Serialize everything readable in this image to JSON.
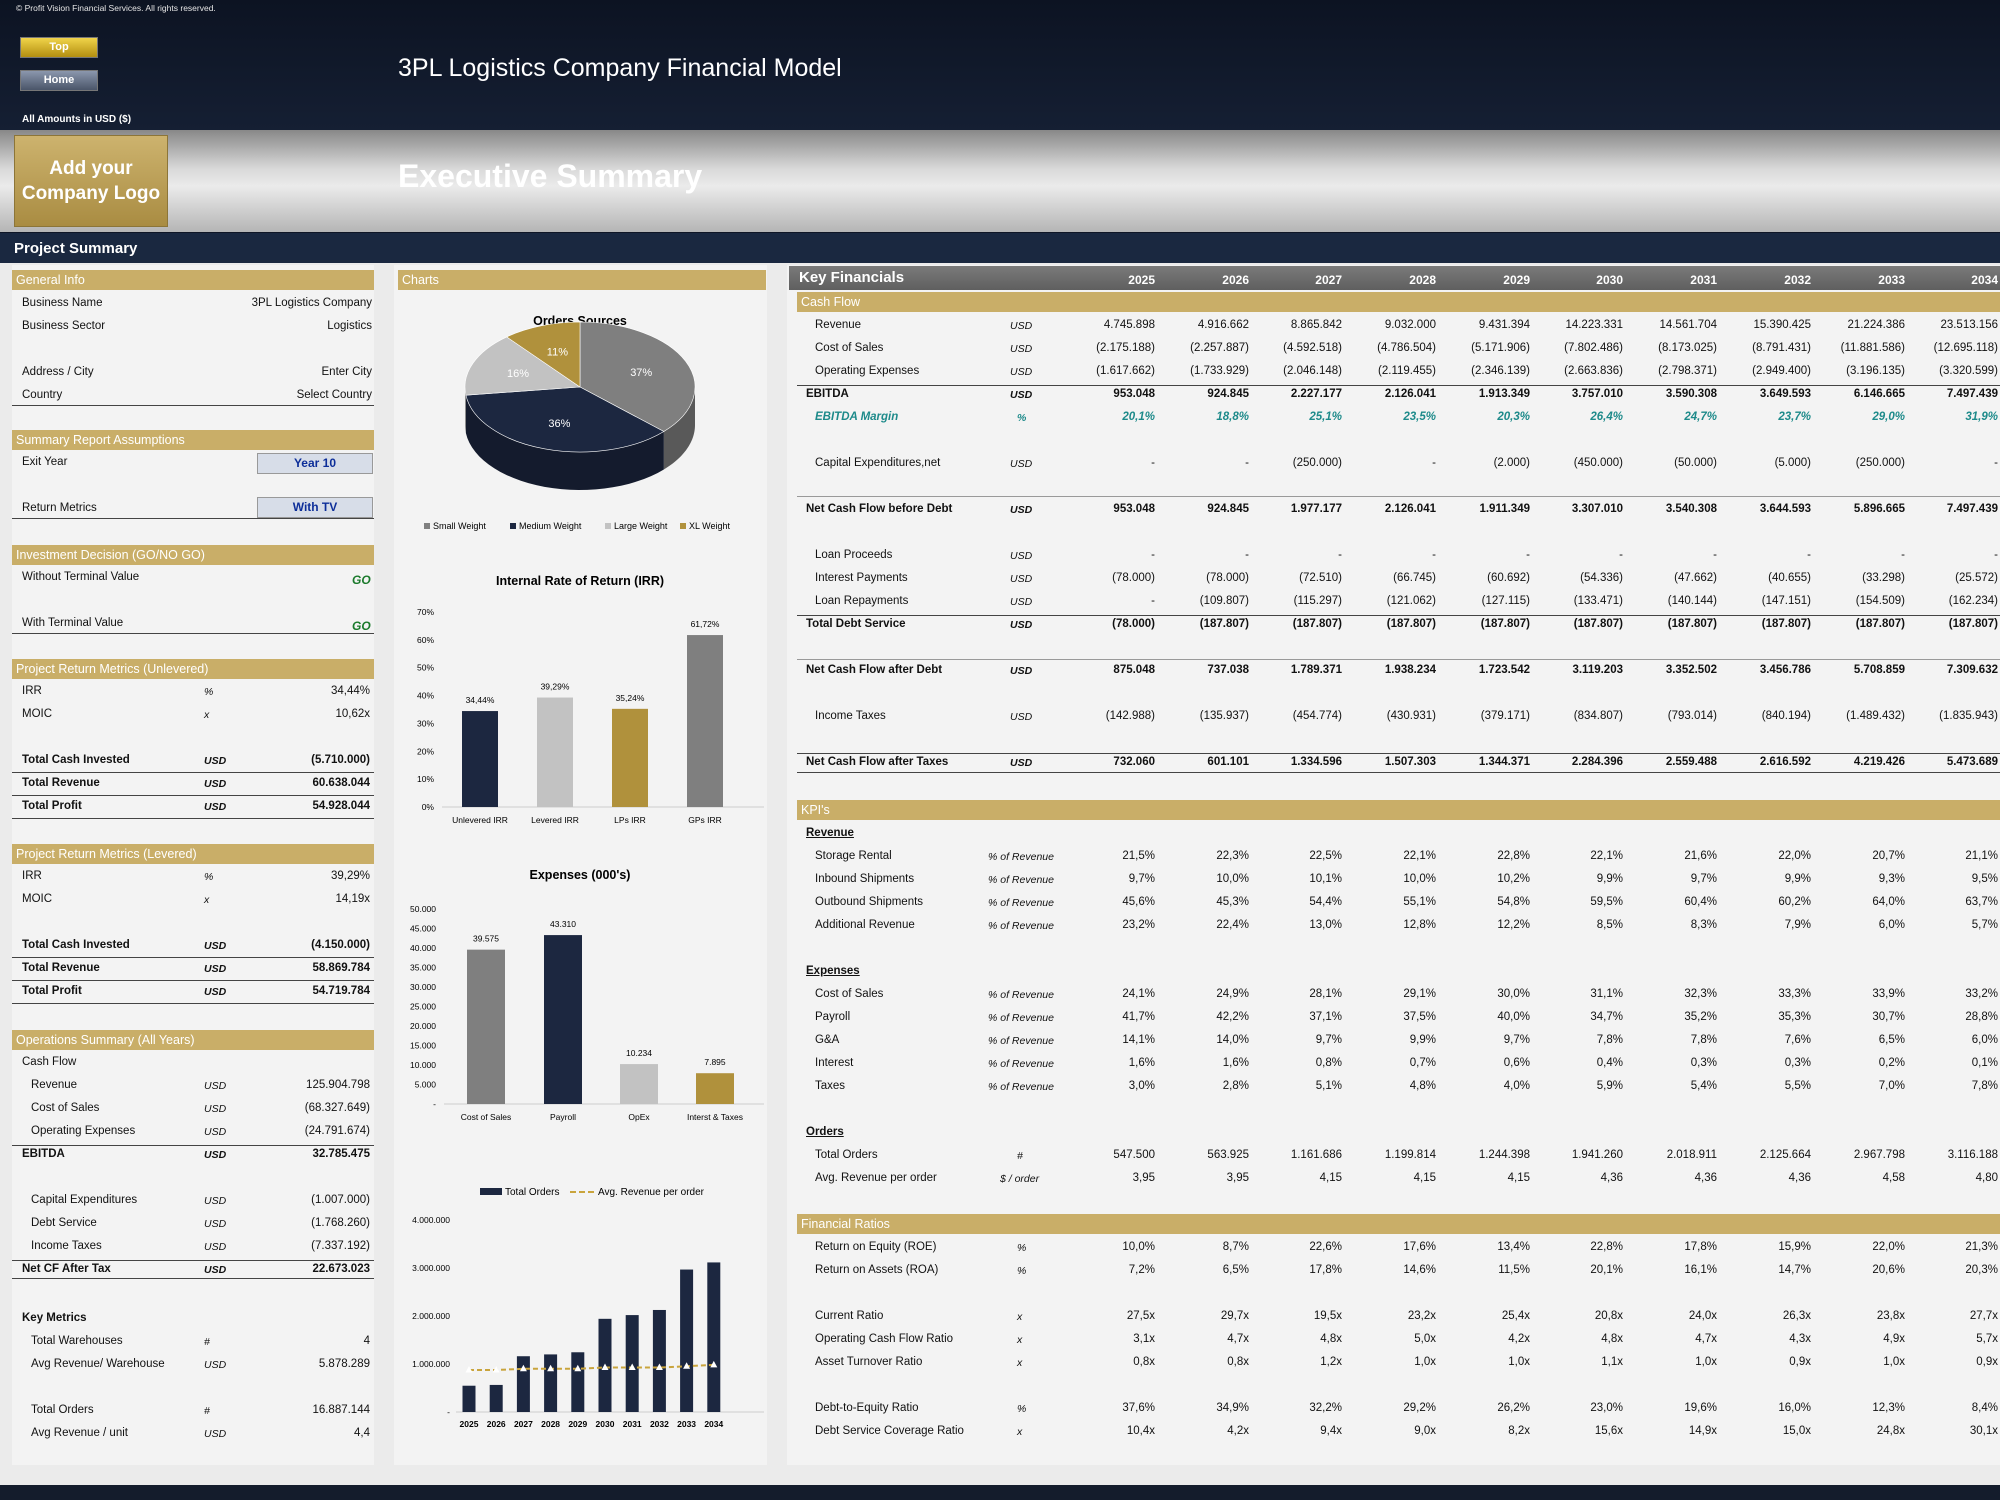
{
  "copyright": "© Profit Vision Financial Services. All rights reserved.",
  "nav": {
    "top": "Top",
    "home": "Home"
  },
  "model_title": "3PL Logistics Company Financial Model",
  "amounts_label": "All Amounts in  USD ($)",
  "logo_text": "Add your Company Logo",
  "page_title": "Executive Summary",
  "project_summary": "Project Summary",
  "general_info": {
    "header": "General Info",
    "rows": [
      {
        "label": "Business Name",
        "value": "3PL Logistics Company"
      },
      {
        "label": "Business Sector",
        "value": "Logistics"
      },
      {
        "label": "Address / City",
        "value": "Enter City"
      },
      {
        "label": "Country",
        "value": "Select Country"
      }
    ]
  },
  "assumptions": {
    "header": "Summary  Report Assumptions",
    "exit_year_label": "Exit Year",
    "exit_year_value": "Year 10",
    "return_label": "Return Metrics",
    "return_value": "With TV"
  },
  "decision": {
    "header": "Investment Decision (GO/NO GO)",
    "without_label": "Without Terminal Value",
    "without_value": "GO",
    "with_label": "With Terminal Value",
    "with_value": "GO"
  },
  "unlevered": {
    "header": "Project Return Metrics (Unlevered)",
    "irr": {
      "label": "IRR",
      "unit": "%",
      "value": "34,44%"
    },
    "moic": {
      "label": "MOIC",
      "unit": "x",
      "value": "10,62x"
    },
    "rows": [
      {
        "label": "Total Cash Invested",
        "unit": "USD",
        "value": "(5.710.000)"
      },
      {
        "label": "Total Revenue",
        "unit": "USD",
        "value": "60.638.044"
      },
      {
        "label": "Total Profit",
        "unit": "USD",
        "value": "54.928.044"
      }
    ]
  },
  "levered": {
    "header": "Project Return Metrics (Levered)",
    "irr": {
      "label": "IRR",
      "unit": "%",
      "value": "39,29%"
    },
    "moic": {
      "label": "MOIC",
      "unit": "x",
      "value": "14,19x"
    },
    "rows": [
      {
        "label": "Total Cash Invested",
        "unit": "USD",
        "value": "(4.150.000)"
      },
      {
        "label": "Total Revenue",
        "unit": "USD",
        "value": "58.869.784"
      },
      {
        "label": "Total Profit",
        "unit": "USD",
        "value": "54.719.784"
      }
    ]
  },
  "operations": {
    "header": "Operations Summary (All Years)",
    "cash_flow_label": "Cash Flow",
    "rows": [
      {
        "label": "Revenue",
        "unit": "USD",
        "value": "125.904.798"
      },
      {
        "label": "Cost of Sales",
        "unit": "USD",
        "value": "(68.327.649)"
      },
      {
        "label": "Operating Expenses",
        "unit": "USD",
        "value": "(24.791.674)"
      }
    ],
    "ebitda": {
      "label": "EBITDA",
      "unit": "USD",
      "value": "32.785.475"
    },
    "rows2": [
      {
        "label": "Capital Expenditures",
        "unit": "USD",
        "value": "(1.007.000)"
      },
      {
        "label": "Debt Service",
        "unit": "USD",
        "value": "(1.768.260)"
      },
      {
        "label": "Income Taxes",
        "unit": "USD",
        "value": "(7.337.192)"
      }
    ],
    "net": {
      "label": "Net CF After Tax",
      "unit": "USD",
      "value": "22.673.023"
    },
    "key_metrics_label": "Key Metrics",
    "km": [
      {
        "label": "Total Warehouses",
        "unit": "#",
        "value": "4"
      },
      {
        "label": "Avg Revenue/ Warehouse",
        "unit": "USD",
        "value": "5.878.289"
      },
      {
        "label": "Total Orders",
        "unit": "#",
        "value": "16.887.144"
      },
      {
        "label": "Avg Revenue / unit",
        "unit": "USD",
        "value": "4,4"
      }
    ]
  },
  "charts_header": "Charts",
  "chart_data": [
    {
      "type": "pie",
      "title": "Orders Sources",
      "categories": [
        "Small Weight",
        "Medium Weight",
        "Large Weight",
        "XL Weight"
      ],
      "values": [
        37,
        36,
        16,
        11
      ],
      "labels": [
        "37%",
        "36%",
        "16%",
        "11%"
      ],
      "colors": [
        "#7f7f7f",
        "#1c2740",
        "#c2c2c2",
        "#b0913c"
      ],
      "legend": "bottom"
    },
    {
      "type": "bar",
      "title": "Internal Rate of Return (IRR)",
      "categories": [
        "Unlevered IRR",
        "Levered IRR",
        "LPs IRR",
        "GPs IRR"
      ],
      "values": [
        34.44,
        39.29,
        35.24,
        61.72
      ],
      "labels": [
        "34,44%",
        "39,29%",
        "35,24%",
        "61,72%"
      ],
      "colors": [
        "#1c2740",
        "#c2c2c2",
        "#b0913c",
        "#7f7f7f"
      ],
      "ylim": [
        0,
        70
      ],
      "yticks": [
        "0%",
        "10%",
        "20%",
        "30%",
        "40%",
        "50%",
        "60%",
        "70%"
      ]
    },
    {
      "type": "bar",
      "title": "Expenses (000's)",
      "categories": [
        "Cost of Sales",
        "Payroll",
        "OpEx",
        "Interst & Taxes"
      ],
      "values": [
        39575,
        43310,
        10234,
        7895
      ],
      "labels": [
        "39.575",
        "43.310",
        "10.234",
        "7.895"
      ],
      "colors": [
        "#7f7f7f",
        "#1c2740",
        "#c2c2c2",
        "#b0913c"
      ],
      "ylim": [
        0,
        50000
      ],
      "yticks": [
        "-",
        "5.000",
        "10.000",
        "15.000",
        "20.000",
        "25.000",
        "30.000",
        "35.000",
        "40.000",
        "45.000",
        "50.000"
      ]
    },
    {
      "type": "bar",
      "title": "",
      "categories": [
        "2025",
        "2026",
        "2027",
        "2028",
        "2029",
        "2030",
        "2031",
        "2032",
        "2033",
        "2034"
      ],
      "series": [
        {
          "name": "Total Orders",
          "values": [
            547500,
            563925,
            1161686,
            1199814,
            1244398,
            1941260,
            2018911,
            2125664,
            2967798,
            3116188
          ]
        },
        {
          "name": "Avg. Revenue per order",
          "values": [
            3.95,
            3.95,
            4.15,
            4.15,
            4.15,
            4.36,
            4.36,
            4.36,
            4.58,
            4.8
          ]
        }
      ],
      "ylim": [
        0,
        4000000
      ],
      "yticks": [
        "-",
        "1.000.000",
        "2.000.000",
        "3.000.000",
        "4.000.000"
      ],
      "legend": "top"
    }
  ],
  "key_financials": {
    "title": "Key Financials",
    "years": [
      "2025",
      "2026",
      "2027",
      "2028",
      "2029",
      "2030",
      "2031",
      "2032",
      "2033",
      "2034"
    ]
  },
  "cash_flow_header": "Cash Flow",
  "cf_rows": [
    {
      "label": "Revenue",
      "unit": "USD",
      "v": [
        "4.745.898",
        "4.916.662",
        "8.865.842",
        "9.032.000",
        "9.431.394",
        "14.223.331",
        "14.561.704",
        "15.390.425",
        "21.224.386",
        "23.513.156"
      ]
    },
    {
      "label": "Cost of Sales",
      "unit": "USD",
      "v": [
        "(2.175.188)",
        "(2.257.887)",
        "(4.592.518)",
        "(4.786.504)",
        "(5.171.906)",
        "(7.802.486)",
        "(8.173.025)",
        "(8.791.431)",
        "(11.881.586)",
        "(12.695.118)"
      ]
    },
    {
      "label": "Operating Expenses",
      "unit": "USD",
      "v": [
        "(1.617.662)",
        "(1.733.929)",
        "(2.046.148)",
        "(2.119.455)",
        "(2.346.139)",
        "(2.663.836)",
        "(2.798.371)",
        "(2.949.400)",
        "(3.196.135)",
        "(3.320.599)"
      ]
    },
    {
      "label": "EBITDA",
      "unit": "USD",
      "v": [
        "953.048",
        "924.845",
        "2.227.177",
        "2.126.041",
        "1.913.349",
        "3.757.010",
        "3.590.308",
        "3.649.593",
        "6.146.665",
        "7.497.439"
      ]
    },
    {
      "label": "EBITDA Margin",
      "unit": "%",
      "v": [
        "20,1%",
        "18,8%",
        "25,1%",
        "23,5%",
        "20,3%",
        "26,4%",
        "24,7%",
        "23,7%",
        "29,0%",
        "31,9%"
      ]
    },
    {
      "label": "Capital Expenditures,net",
      "unit": "USD",
      "v": [
        "-",
        "-",
        "(250.000)",
        "-",
        "(2.000)",
        "(450.000)",
        "(50.000)",
        "(5.000)",
        "(250.000)",
        "-"
      ]
    },
    {
      "label": "Net Cash Flow before Debt",
      "unit": "USD",
      "v": [
        "953.048",
        "924.845",
        "1.977.177",
        "2.126.041",
        "1.911.349",
        "3.307.010",
        "3.540.308",
        "3.644.593",
        "5.896.665",
        "7.497.439"
      ]
    },
    {
      "label": "Loan Proceeds",
      "unit": "USD",
      "v": [
        "-",
        "-",
        "-",
        "-",
        "-",
        "-",
        "-",
        "-",
        "-",
        "-"
      ]
    },
    {
      "label": "Interest Payments",
      "unit": "USD",
      "v": [
        "(78.000)",
        "(78.000)",
        "(72.510)",
        "(66.745)",
        "(60.692)",
        "(54.336)",
        "(47.662)",
        "(40.655)",
        "(33.298)",
        "(25.572)"
      ]
    },
    {
      "label": "Loan Repayments",
      "unit": "USD",
      "v": [
        "-",
        "(109.807)",
        "(115.297)",
        "(121.062)",
        "(127.115)",
        "(133.471)",
        "(140.144)",
        "(147.151)",
        "(154.509)",
        "(162.234)"
      ]
    },
    {
      "label": "Total Debt Service",
      "unit": "USD",
      "v": [
        "(78.000)",
        "(187.807)",
        "(187.807)",
        "(187.807)",
        "(187.807)",
        "(187.807)",
        "(187.807)",
        "(187.807)",
        "(187.807)",
        "(187.807)"
      ]
    },
    {
      "label": "Net Cash Flow after Debt",
      "unit": "USD",
      "v": [
        "875.048",
        "737.038",
        "1.789.371",
        "1.938.234",
        "1.723.542",
        "3.119.203",
        "3.352.502",
        "3.456.786",
        "5.708.859",
        "7.309.632"
      ]
    },
    {
      "label": "Income Taxes",
      "unit": "USD",
      "v": [
        "(142.988)",
        "(135.937)",
        "(454.774)",
        "(430.931)",
        "(379.171)",
        "(834.807)",
        "(793.014)",
        "(840.194)",
        "(1.489.432)",
        "(1.835.943)"
      ]
    },
    {
      "label": "Net Cash Flow after Taxes",
      "unit": "USD",
      "v": [
        "732.060",
        "601.101",
        "1.334.596",
        "1.507.303",
        "1.344.371",
        "2.284.396",
        "2.559.488",
        "2.616.592",
        "4.219.426",
        "5.473.689"
      ]
    }
  ],
  "kpi_header": "KPI's",
  "kpi_revenue_label": "Revenue",
  "kpi_rev": [
    {
      "label": "Storage Rental",
      "unit": "% of Revenue",
      "v": [
        "21,5%",
        "22,3%",
        "22,5%",
        "22,1%",
        "22,8%",
        "22,1%",
        "21,6%",
        "22,0%",
        "20,7%",
        "21,1%"
      ]
    },
    {
      "label": "Inbound Shipments",
      "unit": "% of Revenue",
      "v": [
        "9,7%",
        "10,0%",
        "10,1%",
        "10,0%",
        "10,2%",
        "9,9%",
        "9,7%",
        "9,9%",
        "9,3%",
        "9,5%"
      ]
    },
    {
      "label": "Outbound Shipments",
      "unit": "% of Revenue",
      "v": [
        "45,6%",
        "45,3%",
        "54,4%",
        "55,1%",
        "54,8%",
        "59,5%",
        "60,4%",
        "60,2%",
        "64,0%",
        "63,7%"
      ]
    },
    {
      "label": "Additional Revenue",
      "unit": "% of Revenue",
      "v": [
        "23,2%",
        "22,4%",
        "13,0%",
        "12,8%",
        "12,2%",
        "8,5%",
        "8,3%",
        "7,9%",
        "6,0%",
        "5,7%"
      ]
    }
  ],
  "kpi_expenses_label": "Expenses",
  "kpi_exp": [
    {
      "label": "Cost of Sales",
      "unit": "% of Revenue",
      "v": [
        "24,1%",
        "24,9%",
        "28,1%",
        "29,1%",
        "30,0%",
        "31,1%",
        "32,3%",
        "33,3%",
        "33,9%",
        "33,2%"
      ]
    },
    {
      "label": "Payroll",
      "unit": "% of Revenue",
      "v": [
        "41,7%",
        "42,2%",
        "37,1%",
        "37,5%",
        "40,0%",
        "34,7%",
        "35,2%",
        "35,3%",
        "30,7%",
        "28,8%"
      ]
    },
    {
      "label": "G&A",
      "unit": "% of Revenue",
      "v": [
        "14,1%",
        "14,0%",
        "9,7%",
        "9,9%",
        "9,7%",
        "7,8%",
        "7,8%",
        "7,6%",
        "6,5%",
        "6,0%"
      ]
    },
    {
      "label": "Interest",
      "unit": "% of Revenue",
      "v": [
        "1,6%",
        "1,6%",
        "0,8%",
        "0,7%",
        "0,6%",
        "0,4%",
        "0,3%",
        "0,3%",
        "0,2%",
        "0,1%"
      ]
    },
    {
      "label": "Taxes",
      "unit": "% of Revenue",
      "v": [
        "3,0%",
        "2,8%",
        "5,1%",
        "4,8%",
        "4,0%",
        "5,9%",
        "5,4%",
        "5,5%",
        "7,0%",
        "7,8%"
      ]
    }
  ],
  "kpi_orders_label": "Orders",
  "kpi_ord": [
    {
      "label": "Total Orders",
      "unit": "#",
      "v": [
        "547.500",
        "563.925",
        "1.161.686",
        "1.199.814",
        "1.244.398",
        "1.941.260",
        "2.018.911",
        "2.125.664",
        "2.967.798",
        "3.116.188"
      ]
    },
    {
      "label": "Avg. Revenue per order",
      "unit": "$ / order",
      "v": [
        "3,95",
        "3,95",
        "4,15",
        "4,15",
        "4,15",
        "4,36",
        "4,36",
        "4,36",
        "4,58",
        "4,80"
      ]
    }
  ],
  "ratios_header": "Financial Ratios",
  "ratios": [
    {
      "label": "Return on Equity (ROE)",
      "unit": "%",
      "v": [
        "10,0%",
        "8,7%",
        "22,6%",
        "17,6%",
        "13,4%",
        "22,8%",
        "17,8%",
        "15,9%",
        "22,0%",
        "21,3%"
      ]
    },
    {
      "label": "Return on Assets (ROA)",
      "unit": "%",
      "v": [
        "7,2%",
        "6,5%",
        "17,8%",
        "14,6%",
        "11,5%",
        "20,1%",
        "16,1%",
        "14,7%",
        "20,6%",
        "20,3%"
      ]
    },
    {
      "label": "Current Ratio",
      "unit": "x",
      "v": [
        "27,5x",
        "29,7x",
        "19,5x",
        "23,2x",
        "25,4x",
        "20,8x",
        "24,0x",
        "26,3x",
        "23,8x",
        "27,7x"
      ]
    },
    {
      "label": "Operating Cash Flow Ratio",
      "unit": "x",
      "v": [
        "3,1x",
        "4,7x",
        "4,8x",
        "5,0x",
        "4,2x",
        "4,8x",
        "4,7x",
        "4,3x",
        "4,9x",
        "5,7x"
      ]
    },
    {
      "label": "Asset Turnover Ratio",
      "unit": "x",
      "v": [
        "0,8x",
        "0,8x",
        "1,2x",
        "1,0x",
        "1,0x",
        "1,1x",
        "1,0x",
        "0,9x",
        "1,0x",
        "0,9x"
      ]
    },
    {
      "label": "Debt-to-Equity Ratio",
      "unit": "%",
      "v": [
        "37,6%",
        "34,9%",
        "32,2%",
        "29,2%",
        "26,2%",
        "23,0%",
        "19,6%",
        "16,0%",
        "12,3%",
        "8,4%"
      ]
    },
    {
      "label": "Debt Service Coverage Ratio",
      "unit": "x",
      "v": [
        "10,4x",
        "4,2x",
        "9,4x",
        "9,0x",
        "8,2x",
        "15,6x",
        "14,9x",
        "15,0x",
        "24,8x",
        "30,1x"
      ]
    }
  ]
}
